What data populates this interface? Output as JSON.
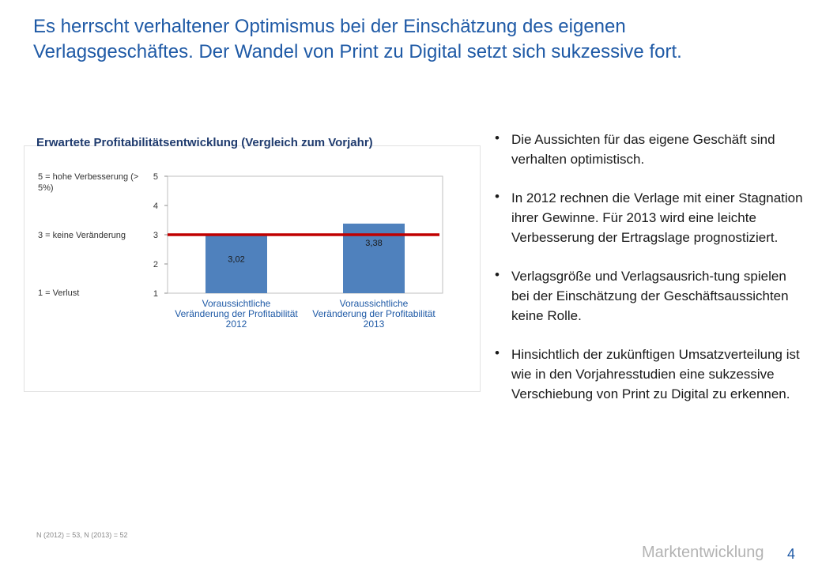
{
  "title": {
    "line1": "Es herrscht verhaltener Optimismus bei der Einschätzung des eigenen",
    "line2": "Verlagsgeschäftes. Der Wandel von Print zu Digital setzt sich sukzessive fort."
  },
  "chart_heading": "Erwartete Profitabilitätsentwicklung (Vergleich zum Vorjahr)",
  "scale_labels": {
    "high": "5 = hohe Verbesserung (> 5%)",
    "neutral": "3 = keine Veränderung",
    "loss": "1 = Verlust"
  },
  "chart_data": {
    "type": "bar",
    "title": "Erwartete Profitabilitätsentwicklung (Vergleich zum Vorjahr)",
    "categories": [
      "Voraussichtliche Veränderung der Profitabilität 2012",
      "Voraussichtliche Veränderung der Profitabilität 2013"
    ],
    "category_lines": [
      [
        "Voraussichtliche",
        "Veränderung der Profitabilität",
        "2012"
      ],
      [
        "Voraussichtliche",
        "Veränderung der Profitabilität",
        "2013"
      ]
    ],
    "values": [
      3.02,
      3.38
    ],
    "value_labels": [
      "3,02",
      "3,38"
    ],
    "ylim": [
      1,
      5
    ],
    "yticks": [
      1,
      2,
      3,
      4,
      5
    ],
    "reference_line": 3,
    "bar_color": "#4f81bd",
    "reference_color": "#c00000",
    "xlabel": "",
    "ylabel": ""
  },
  "bullets": [
    "Die Aussichten für das eigene Geschäft sind verhalten optimistisch.",
    "In 2012 rechnen die Verlage mit einer Stagnation ihrer Gewinne. Für 2013 wird eine leichte Verbesserung der Ertragslage prognostiziert.",
    "Verlagsgröße und Verlagsausrich-tung spielen bei der Einschätzung der Geschäftsaussichten keine Rolle.",
    "Hinsichtlich der zukünftigen Umsatzverteilung ist wie in den Vorjahresstudien eine sukzessive Verschiebung von Print zu Digital zu erkennen."
  ],
  "bullet_symbol": "•",
  "footnote": "N (2012) = 53, N (2013) = 52",
  "section_label": "Marktentwicklung",
  "page_number": "4"
}
